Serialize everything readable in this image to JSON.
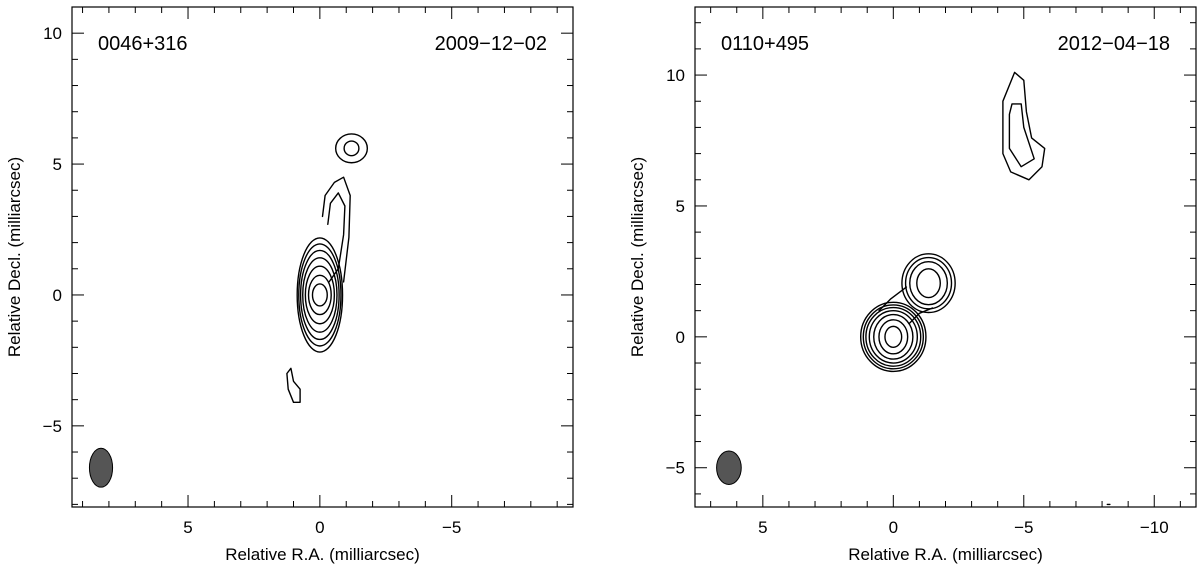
{
  "chart_data": [
    {
      "type": "contour",
      "source_label": "0046+316",
      "date_label": "2009−12−02",
      "xlabel": "Relative R.A. (milliarcsec)",
      "ylabel": "Relative Decl. (milliarcsec)",
      "xlim": [
        9.4,
        -9.6
      ],
      "ylim": [
        -8.1,
        11.0
      ],
      "x_major_ticks": [
        5,
        0,
        -5
      ],
      "x_tick_labels": [
        "5",
        "0",
        "−5"
      ],
      "y_major_ticks": [
        10,
        5,
        0,
        -5
      ],
      "y_tick_labels": [
        "10",
        "5",
        "0",
        "−5"
      ],
      "beam": {
        "x": 8.3,
        "y": -6.6,
        "major": 1.1,
        "minor": 0.65,
        "color": "#555555"
      },
      "components": [
        {
          "name": "core",
          "center": [
            0.0,
            0.0
          ],
          "contours": [
            {
              "rx": 0.28,
              "ry": 0.42
            },
            {
              "rx": 0.43,
              "ry": 0.75
            },
            {
              "rx": 0.55,
              "ry": 1.1
            },
            {
              "rx": 0.65,
              "ry": 1.42
            },
            {
              "rx": 0.73,
              "ry": 1.7
            },
            {
              "rx": 0.8,
              "ry": 1.95
            },
            {
              "rx": 0.86,
              "ry": 2.18
            }
          ]
        },
        {
          "name": "jet",
          "paths": [
            [
              [
                -0.3,
                2.7
              ],
              [
                -0.4,
                3.5
              ],
              [
                -0.7,
                3.9
              ],
              [
                -0.95,
                3.4
              ],
              [
                -0.9,
                2.3
              ],
              [
                -0.7,
                1.0
              ],
              [
                -0.35,
                0.5
              ]
            ],
            [
              [
                -0.1,
                3.0
              ],
              [
                -0.2,
                3.8
              ],
              [
                -0.55,
                4.3
              ],
              [
                -0.9,
                4.5
              ],
              [
                -1.15,
                3.8
              ],
              [
                -1.1,
                2.2
              ],
              [
                -0.9,
                0.5
              ]
            ]
          ]
        },
        {
          "name": "northern-knot",
          "center": [
            -1.2,
            5.6
          ],
          "contours": [
            {
              "rx": 0.28,
              "ry": 0.28
            },
            {
              "rx": 0.6,
              "ry": 0.55
            }
          ]
        },
        {
          "name": "southern-feature",
          "paths": [
            [
              [
                1.25,
                -3.0
              ],
              [
                1.2,
                -3.6
              ],
              [
                1.0,
                -4.1
              ],
              [
                0.75,
                -4.1
              ],
              [
                0.75,
                -3.6
              ],
              [
                1.0,
                -3.3
              ],
              [
                1.1,
                -2.8
              ],
              [
                1.25,
                -3.0
              ]
            ]
          ]
        }
      ]
    },
    {
      "type": "contour",
      "source_label": "0110+495",
      "date_label": "2012−04−18",
      "xlabel": "Relative R.A. (milliarcsec)",
      "ylabel": "Relative Decl. (milliarcsec)",
      "xlim": [
        7.6,
        -11.6
      ],
      "ylim": [
        -6.5,
        12.6
      ],
      "x_major_ticks": [
        5,
        0,
        -5,
        -10
      ],
      "x_tick_labels": [
        "5",
        "0",
        "−5",
        "−10"
      ],
      "y_major_ticks": [
        10,
        5,
        0,
        -5
      ],
      "y_tick_labels": [
        "10",
        "5",
        "0",
        "−5"
      ],
      "beam": {
        "x": 6.3,
        "y": -5.0,
        "major": 0.95,
        "minor": 0.7,
        "color": "#555555"
      },
      "components": [
        {
          "name": "core",
          "center": [
            0.0,
            0.0
          ],
          "contours": [
            {
              "rx": 0.32,
              "ry": 0.4
            },
            {
              "rx": 0.55,
              "ry": 0.65
            },
            {
              "rx": 0.75,
              "ry": 0.85
            },
            {
              "rx": 0.92,
              "ry": 1.0
            },
            {
              "rx": 1.05,
              "ry": 1.12
            },
            {
              "rx": 1.15,
              "ry": 1.22
            },
            {
              "rx": 1.25,
              "ry": 1.32
            }
          ]
        },
        {
          "name": "secondary",
          "center": [
            -1.35,
            2.05
          ],
          "contours": [
            {
              "rx": 0.45,
              "ry": 0.55
            },
            {
              "rx": 0.72,
              "ry": 0.82
            },
            {
              "rx": 0.88,
              "ry": 0.98
            },
            {
              "rx": 1.02,
              "ry": 1.12
            }
          ]
        },
        {
          "name": "bridge",
          "paths": [
            [
              [
                0.55,
                1.0
              ],
              [
                0.1,
                1.45
              ],
              [
                -0.5,
                1.9
              ]
            ],
            [
              [
                -0.6,
                0.5
              ],
              [
                -1.0,
                0.9
              ],
              [
                -1.5,
                1.1
              ]
            ]
          ]
        },
        {
          "name": "northern-blob",
          "paths": [
            [
              [
                -4.2,
                9.0
              ],
              [
                -4.65,
                10.1
              ],
              [
                -5.0,
                9.8
              ],
              [
                -5.1,
                8.6
              ],
              [
                -5.3,
                7.6
              ],
              [
                -5.8,
                7.2
              ],
              [
                -5.7,
                6.5
              ],
              [
                -5.2,
                6.0
              ],
              [
                -4.5,
                6.3
              ],
              [
                -4.2,
                7.0
              ],
              [
                -4.2,
                9.0
              ]
            ],
            [
              [
                -4.45,
                8.5
              ],
              [
                -4.55,
                8.9
              ],
              [
                -4.9,
                8.9
              ],
              [
                -5.0,
                8.0
              ],
              [
                -5.4,
                6.8
              ],
              [
                -4.9,
                6.5
              ],
              [
                -4.45,
                7.2
              ],
              [
                -4.45,
                8.5
              ]
            ]
          ]
        },
        {
          "name": "noise-dot",
          "paths": [
            [
              [
                -8.2,
                -6.4
              ],
              [
                -8.3,
                -6.4
              ]
            ]
          ]
        }
      ]
    }
  ]
}
